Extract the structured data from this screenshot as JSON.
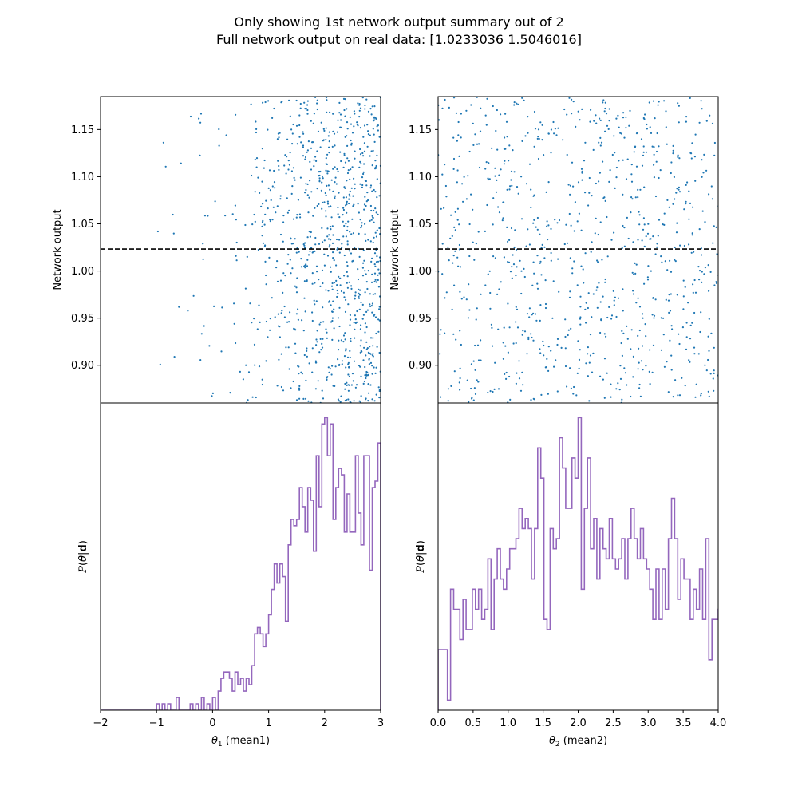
{
  "figure": {
    "title_line1": "Only showing 1st network output summary out of 2",
    "title_line2": "Full network output on real data: [1.0233036 1.5046016]"
  },
  "colors": {
    "scatter": "#1f77b4",
    "histogram": "#9467bd",
    "reference_line": "#000000"
  },
  "chart_data": [
    {
      "type": "scatter",
      "panel": "top-left",
      "xlabel": "",
      "ylabel": "Network output",
      "xlim": [
        -2,
        3
      ],
      "ylim": [
        0.86,
        1.185
      ],
      "yticks": [
        "0.90",
        "0.95",
        "1.00",
        "1.05",
        "1.10",
        "1.15"
      ],
      "reference_line": {
        "y": 1.0233036,
        "style": "dashed"
      },
      "points": {
        "n": 980,
        "x_distribution": "dense between 0.5 and 3, sparse between -1 and 0.5, none below -1",
        "y_range": [
          0.86,
          1.185
        ]
      }
    },
    {
      "type": "scatter",
      "panel": "top-right",
      "xlabel": "",
      "ylabel": "Network output",
      "xlim": [
        0,
        4
      ],
      "ylim": [
        0.86,
        1.185
      ],
      "yticks": [
        "0.90",
        "0.95",
        "1.00",
        "1.05",
        "1.10",
        "1.15"
      ],
      "reference_line": {
        "y": 1.0233036,
        "style": "dashed"
      },
      "points": {
        "n": 900,
        "x_distribution": "roughly uniform between 0 and 4",
        "y_range": [
          0.86,
          1.185
        ]
      }
    },
    {
      "type": "histogram",
      "panel": "bottom-left",
      "xlabel": "θ_1 (mean1)",
      "ylabel": "P(θ|d)",
      "xlim": [
        -2,
        3
      ],
      "xticks": [
        "−2",
        "−1",
        "0",
        "1",
        "2",
        "3"
      ],
      "bin_start": -2,
      "bin_width": 0.05,
      "counts": [
        0,
        0,
        0,
        0,
        0,
        0,
        0,
        0,
        0,
        0,
        0,
        0,
        0,
        0,
        0,
        0,
        0,
        0,
        0,
        0,
        1,
        0,
        1,
        0,
        1,
        0,
        0,
        2,
        0,
        0,
        0,
        0,
        1,
        0,
        1,
        0,
        2,
        0,
        1,
        0,
        2,
        0,
        3,
        5,
        6,
        6,
        5,
        3,
        6,
        4,
        5,
        3,
        5,
        4,
        7,
        12,
        13,
        12,
        10,
        12,
        15,
        19,
        23,
        20,
        23,
        21,
        14,
        26,
        30,
        29,
        30,
        35,
        32,
        28,
        35,
        33,
        25,
        40,
        32,
        45,
        46,
        40,
        45,
        30,
        35,
        38,
        37,
        28,
        34,
        28,
        28,
        40,
        31,
        26,
        40,
        40,
        22,
        35,
        36,
        42
      ]
    },
    {
      "type": "histogram",
      "panel": "bottom-right",
      "xlabel": "θ_2 (mean2)",
      "ylabel": "P(θ|d)",
      "xlim": [
        0,
        4
      ],
      "xticks": [
        "0.0",
        "0.5",
        "1.0",
        "1.5",
        "2.0",
        "2.5",
        "3.0",
        "3.5",
        "4.0"
      ],
      "bin_start": 0,
      "bin_width": 0.0444444,
      "counts": [
        6,
        6,
        6,
        1,
        12,
        10,
        10,
        7,
        11,
        8,
        8,
        12,
        10,
        12,
        9,
        10,
        15,
        8,
        13,
        16,
        13,
        12,
        14,
        16,
        16,
        17,
        20,
        18,
        19,
        18,
        13,
        18,
        26,
        23,
        9,
        8,
        18,
        16,
        17,
        27,
        24,
        20,
        20,
        25,
        23,
        29,
        12,
        20,
        25,
        16,
        19,
        13,
        18,
        16,
        15,
        19,
        15,
        14,
        15,
        17,
        13,
        17,
        20,
        17,
        15,
        18,
        15,
        14,
        12,
        9,
        14,
        9,
        14,
        10,
        17,
        21,
        17,
        11,
        15,
        13,
        13,
        9,
        12,
        10,
        14,
        9,
        17,
        5,
        9,
        9,
        10,
        9,
        7,
        10,
        12,
        9,
        5
      ]
    }
  ]
}
